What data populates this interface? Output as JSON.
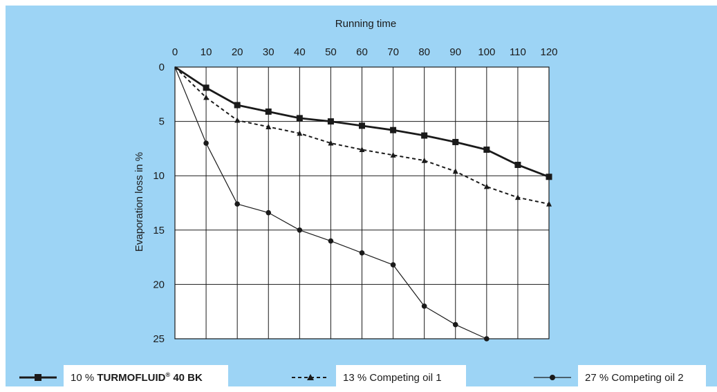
{
  "chart_data": {
    "type": "line",
    "title": "",
    "xlabel": "Running time",
    "ylabel": "Evaporation loss in %",
    "x": [
      0,
      10,
      20,
      30,
      40,
      50,
      60,
      70,
      80,
      90,
      100,
      110,
      120
    ],
    "xlim": [
      0,
      120
    ],
    "ylim": [
      0,
      25
    ],
    "y_inverted": true,
    "x_axis_position": "top",
    "x_ticks": [
      "0",
      "10",
      "20",
      "30",
      "40",
      "50",
      "60",
      "70",
      "80",
      "90",
      "100",
      "110",
      "120"
    ],
    "y_ticks": [
      "0",
      "5",
      "10",
      "15",
      "20",
      "25"
    ],
    "grid": true,
    "legend_position": "bottom",
    "series": [
      {
        "name": "10 % TURMOFLUID® 40 BK",
        "marker": "square",
        "line_style": "solid-thick",
        "values": [
          0,
          1.9,
          3.5,
          4.1,
          4.7,
          5.0,
          5.4,
          5.8,
          6.3,
          6.9,
          7.6,
          9.0,
          10.1
        ]
      },
      {
        "name": "13 % Competing oil 1",
        "marker": "triangle",
        "line_style": "dashed",
        "values": [
          0,
          2.8,
          4.9,
          5.5,
          6.1,
          7.0,
          7.6,
          8.1,
          8.6,
          9.6,
          11.0,
          12.0,
          12.6
        ]
      },
      {
        "name": "27 % Competing oil 2",
        "marker": "circle",
        "line_style": "solid-thin",
        "values": [
          0,
          7.0,
          12.6,
          13.4,
          15.0,
          16.0,
          17.1,
          18.2,
          22.0,
          23.7,
          25.0,
          null,
          null
        ]
      }
    ]
  },
  "legend": {
    "s1_pre": "10 % ",
    "s1_brand": "TURMOFLUID",
    "s1_reg": "®",
    "s1_post": " 40 BK",
    "s2": "13 % Competing oil 1",
    "s3": "27 % Competing oil 2"
  },
  "colors": {
    "background": "#9dd4f5",
    "plot": "#ffffff",
    "line": "#1a1a1a"
  }
}
